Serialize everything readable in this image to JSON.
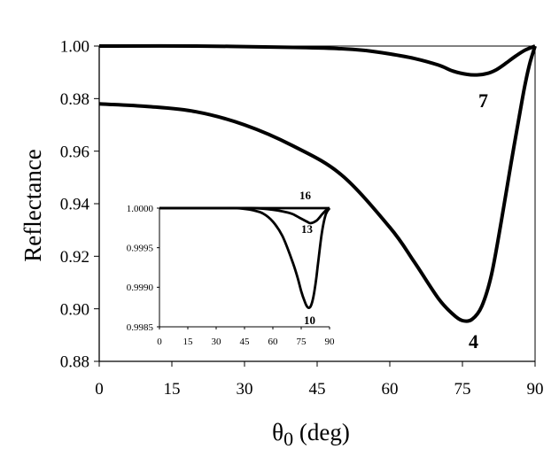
{
  "chart_data": [
    {
      "type": "line",
      "xlabel": "θ0 (deg)",
      "ylabel": "Reflectance",
      "xlim": [
        0,
        90
      ],
      "ylim": [
        0.88,
        1.0
      ],
      "xticks": [
        "0",
        "15",
        "30",
        "45",
        "60",
        "75",
        "90"
      ],
      "yticks": [
        "0.88",
        "0.90",
        "0.92",
        "0.94",
        "0.96",
        "0.98",
        "1.00"
      ],
      "grid": false,
      "series": [
        {
          "name": "4",
          "x": [
            0,
            10,
            20,
            30,
            40,
            50,
            60,
            65,
            70,
            73,
            75,
            77,
            79,
            81,
            83,
            85,
            87,
            88,
            89,
            90
          ],
          "values": [
            0.978,
            0.977,
            0.975,
            0.97,
            0.962,
            0.951,
            0.931,
            0.918,
            0.904,
            0.898,
            0.8955,
            0.896,
            0.901,
            0.913,
            0.933,
            0.955,
            0.976,
            0.986,
            0.994,
            1.0
          ]
        },
        {
          "name": "7",
          "x": [
            0,
            20,
            40,
            50,
            55,
            60,
            65,
            70,
            73,
            76,
            78,
            80,
            82,
            84,
            86,
            88,
            90
          ],
          "values": [
            1.0,
            1.0,
            0.9995,
            0.999,
            0.9983,
            0.997,
            0.9953,
            0.9928,
            0.9905,
            0.9892,
            0.989,
            0.9895,
            0.991,
            0.9935,
            0.9962,
            0.9985,
            1.0
          ]
        }
      ]
    },
    {
      "type": "line",
      "inset": true,
      "xlim": [
        0,
        90
      ],
      "ylim": [
        0.9985,
        1.0
      ],
      "xticks": [
        "0",
        "15",
        "30",
        "45",
        "60",
        "75",
        "90"
      ],
      "yticks": [
        "0.9985",
        "0.9990",
        "0.9995",
        "1.0000"
      ],
      "series": [
        {
          "name": "16",
          "x": [
            0,
            30,
            50,
            60,
            70,
            80,
            85,
            90
          ],
          "values": [
            1.0,
            1.0,
            1.0,
            1.0,
            1.0,
            1.0,
            1.0,
            1.0
          ]
        },
        {
          "name": "13",
          "x": [
            0,
            40,
            50,
            60,
            65,
            70,
            74,
            78,
            80,
            83,
            86,
            88,
            90
          ],
          "values": [
            1.0,
            1.0,
            1.0,
            0.99998,
            0.99996,
            0.99993,
            0.99988,
            0.99983,
            0.99981,
            0.99984,
            0.99992,
            0.99997,
            1.0
          ]
        },
        {
          "name": "10",
          "x": [
            0,
            30,
            40,
            45,
            50,
            55,
            60,
            65,
            70,
            73,
            75,
            77,
            78,
            79,
            80,
            81,
            82,
            83,
            84,
            86,
            88,
            90
          ],
          "values": [
            1.0,
            1.0,
            1.0,
            0.99999,
            0.99997,
            0.99993,
            0.99983,
            0.99965,
            0.99935,
            0.99913,
            0.99895,
            0.99881,
            0.99876,
            0.99874,
            0.99876,
            0.99883,
            0.99895,
            0.99912,
            0.99932,
            0.9997,
            0.99992,
            1.0
          ]
        }
      ]
    }
  ]
}
